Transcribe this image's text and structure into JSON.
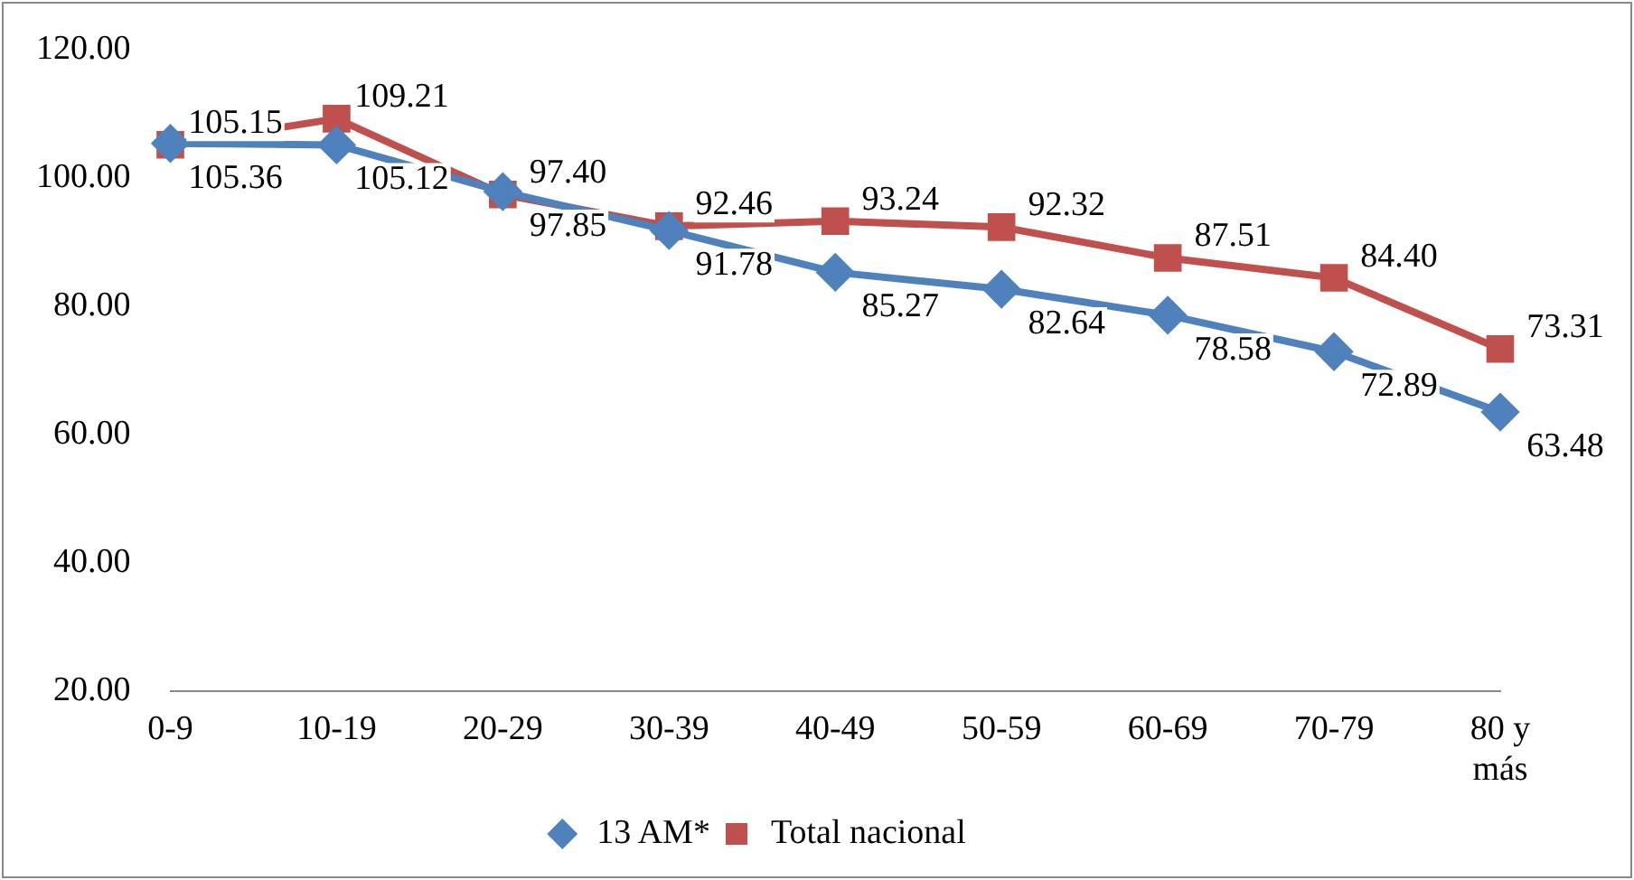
{
  "chart_data": {
    "type": "line",
    "categories": [
      "0-9",
      "10-19",
      "20-29",
      "30-39",
      "40-49",
      "50-59",
      "60-69",
      "70-79",
      "80 y más"
    ],
    "series": [
      {
        "name": "13 AM*",
        "color": "#4f81bd",
        "marker": "diamond",
        "values": [
          105.36,
          105.12,
          97.85,
          91.78,
          85.27,
          82.64,
          78.58,
          72.89,
          63.48
        ],
        "value_labels": [
          "105.36",
          "105.12",
          "97.85",
          "91.78",
          "85.27",
          "82.64",
          "78.58",
          "72.89",
          "63.48"
        ]
      },
      {
        "name": "Total nacional",
        "color": "#c0504d",
        "marker": "square",
        "values": [
          105.15,
          109.21,
          97.4,
          92.46,
          93.24,
          92.32,
          87.51,
          84.4,
          73.31
        ],
        "value_labels": [
          "105.15",
          "109.21",
          "97.40",
          "92.46",
          "93.24",
          "92.32",
          "87.51",
          "84.40",
          "73.31"
        ]
      }
    ],
    "ylim": [
      20,
      120
    ],
    "yticks": [
      {
        "value": 20,
        "label": "20.00"
      },
      {
        "value": 40,
        "label": "40.00"
      },
      {
        "value": 60,
        "label": "60.00"
      },
      {
        "value": 80,
        "label": "80.00"
      },
      {
        "value": 100,
        "label": "100.00"
      },
      {
        "value": 120,
        "label": "120.00"
      }
    ],
    "grid": false,
    "legend": "bottom",
    "line_style": "solid"
  }
}
